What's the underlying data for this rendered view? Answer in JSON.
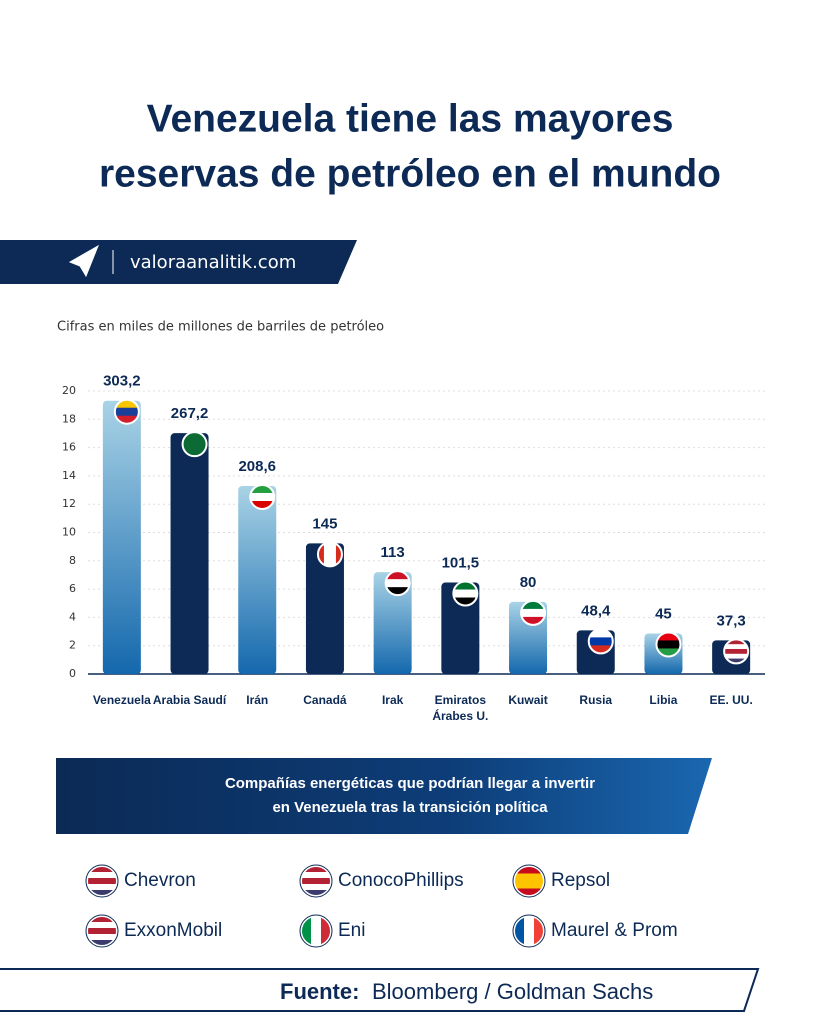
{
  "header": {
    "title": [
      "Venezuela tiene las mayores",
      "reservas de petróleo en el mundo"
    ],
    "brand": "valoraanalitik.com"
  },
  "chart_data": {
    "type": "bar",
    "subtitle": "Cifras en miles de millones de barriles de petróleo",
    "categories": [
      "Venezuela",
      "Arabia Saudí",
      "Irán",
      "Canadá",
      "Irak",
      "Emiratos Árabes U.",
      "Kuwait",
      "Rusia",
      "Libia",
      "EE. UU."
    ],
    "series": [
      {
        "values": [
          303.2,
          267.2,
          208.6,
          145,
          113,
          101.5,
          80,
          48.4,
          45,
          37.3
        ],
        "value_labels": [
          "303,2",
          "267,2",
          "208,6",
          "145",
          "113",
          "101,5",
          "80",
          "48,4",
          "45",
          "37,3"
        ],
        "axis": "y2",
        "colors": [
          "#4b9bcc",
          "#0c2a55",
          "#4b9bcc",
          "#0c2a55",
          "#4b9bcc",
          "#0c2a55",
          "#4b9bcc",
          "#0c2a55",
          "#4b9bcc",
          "#0c2a55"
        ]
      }
    ],
    "ylim": [
      0,
      20
    ],
    "yticks": [
      0,
      2,
      4,
      6,
      8,
      10,
      12,
      14,
      16,
      18,
      20
    ],
    "y2lim": [
      0,
      314
    ],
    "grid": true
  },
  "companies": {
    "heading": [
      "Compañías energéticas que podrían llegar a invertir",
      "en Venezuela tras la transición política"
    ],
    "items": [
      "Chevron",
      "ConocoPhillips",
      "Repsol",
      "ExxonMobil",
      "Eni",
      "Maurel & Prom"
    ]
  },
  "source": {
    "label": "Fuente:",
    "text": "Bloomberg / Goldman Sachs"
  }
}
